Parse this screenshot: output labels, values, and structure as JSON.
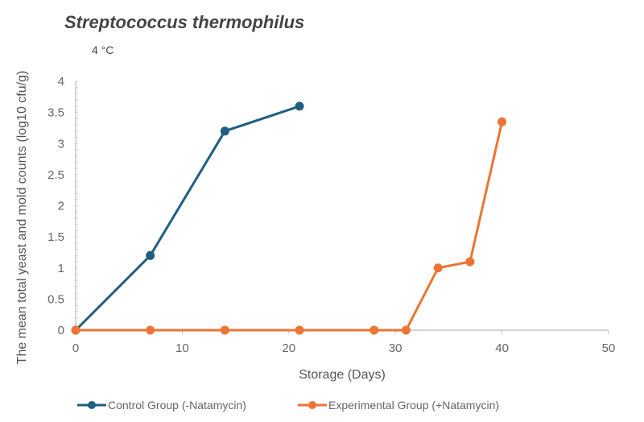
{
  "chart_data": {
    "type": "line",
    "title": "Streptococcus thermophilus",
    "subtitle": "4 °C",
    "xlabel": "Storage (Days)",
    "ylabel": "The mean total yeast and mold counts (log10 cfu/g)",
    "xlim": [
      0,
      50
    ],
    "ylim": [
      0,
      4
    ],
    "xticks": [
      0,
      10,
      20,
      30,
      40,
      50
    ],
    "yticks": [
      0,
      0.5,
      1,
      1.5,
      2,
      2.5,
      3,
      3.5,
      4
    ],
    "grid": false,
    "legend_position": "bottom",
    "series": [
      {
        "name": "Control Group (-Natamycin)",
        "color": "#1f5f82",
        "x": [
          0,
          7,
          14,
          21
        ],
        "y": [
          0,
          1.2,
          3.2,
          3.6
        ]
      },
      {
        "name": "Experimental Group (+Natamycin)",
        "color": "#ed7434",
        "x": [
          0,
          7,
          14,
          21,
          28,
          31,
          34,
          37,
          40
        ],
        "y": [
          0,
          0,
          0,
          0,
          0,
          0,
          1.0,
          1.1,
          3.35
        ]
      }
    ]
  }
}
